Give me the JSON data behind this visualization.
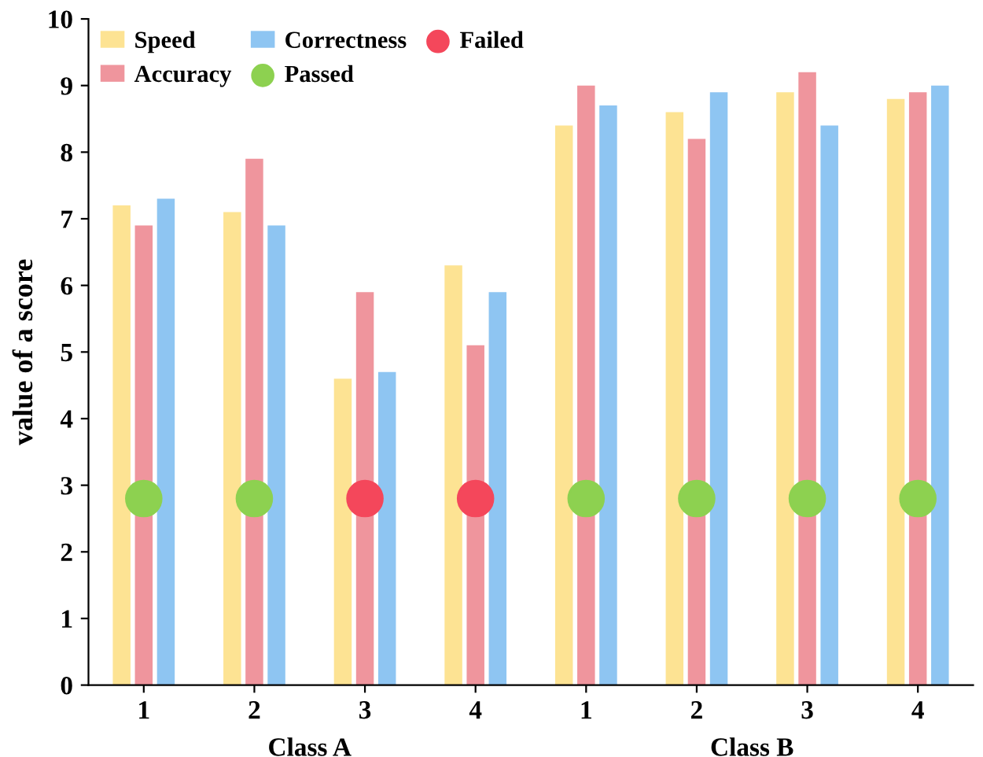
{
  "chart_data": {
    "type": "bar",
    "ylabel": "value of a score",
    "categories": [
      "1",
      "2",
      "3",
      "4",
      "1",
      "2",
      "3",
      "4"
    ],
    "annotations": [
      "Class A",
      "Class B"
    ],
    "series": [
      {
        "name": "Speed",
        "color": "#fde393",
        "values": [
          7.2,
          7.1,
          4.6,
          6.3,
          8.4,
          8.6,
          8.9,
          8.8
        ]
      },
      {
        "name": "Accuracy",
        "color": "#ef959d",
        "values": [
          6.9,
          7.9,
          5.9,
          5.1,
          9.0,
          8.2,
          9.2,
          8.9
        ]
      },
      {
        "name": "Correctness",
        "color": "#8ec5f2",
        "values": [
          7.3,
          6.9,
          4.7,
          5.9,
          8.7,
          8.9,
          8.4,
          9.0
        ]
      },
      {
        "name": "Passed",
        "type": "scatter",
        "color": "#8dd150",
        "values": [
          2.8,
          2.8,
          null,
          null,
          2.8,
          2.8,
          2.8,
          2.8
        ]
      },
      {
        "name": "Failed",
        "type": "scatter",
        "color": "#f4475b",
        "values": [
          null,
          null,
          2.8,
          2.8,
          null,
          null,
          null,
          null
        ]
      }
    ],
    "ylim": [
      0,
      10
    ],
    "yticks": [
      0,
      1,
      2,
      3,
      4,
      5,
      6,
      7,
      8,
      9,
      10
    ],
    "grid": false,
    "legend": "top left",
    "marker": "circle"
  }
}
